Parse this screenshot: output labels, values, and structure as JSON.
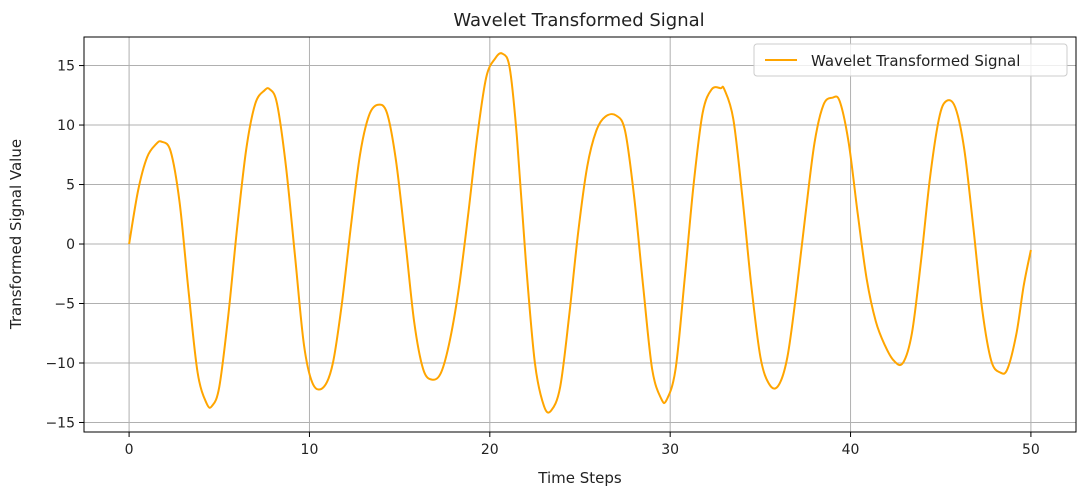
{
  "chart_data": {
    "type": "line",
    "title": "Wavelet Transformed Signal",
    "xlabel": "Time Steps",
    "ylabel": "Transformed Signal Value",
    "xlim": [
      -2.5,
      52.5
    ],
    "ylim": [
      -15.8,
      17.4
    ],
    "xticks": [
      0,
      10,
      20,
      30,
      40,
      50
    ],
    "xtick_labels": [
      "0",
      "10",
      "20",
      "30",
      "40",
      "50"
    ],
    "yticks": [
      -15,
      -10,
      -5,
      0,
      5,
      10,
      15
    ],
    "ytick_labels": [
      "−15",
      "−10",
      "−5",
      "0",
      "5",
      "10",
      "15"
    ],
    "grid": true,
    "legend_position": "top-right",
    "series": [
      {
        "name": "Wavelet Transformed Signal",
        "color": "#FFA500",
        "x": [
          0,
          0.5,
          1.0,
          1.5,
          1.8,
          2.3,
          2.8,
          3.3,
          3.8,
          4.3,
          4.6,
          5.0,
          5.5,
          6.0,
          6.5,
          7.0,
          7.5,
          7.8,
          8.2,
          8.7,
          9.2,
          9.7,
          10.2,
          10.8,
          11.3,
          11.8,
          12.3,
          12.8,
          13.3,
          13.8,
          14.3,
          14.8,
          15.3,
          15.8,
          16.3,
          16.8,
          17.3,
          17.8,
          18.3,
          18.8,
          19.3,
          19.8,
          20.3,
          20.7,
          21.1,
          21.5,
          22.0,
          22.5,
          23.0,
          23.4,
          23.9,
          24.4,
          24.9,
          25.4,
          25.9,
          26.4,
          27.0,
          27.5,
          28.0,
          28.5,
          29.0,
          29.5,
          29.8,
          30.3,
          30.8,
          31.3,
          31.8,
          32.3,
          32.8,
          33.0,
          33.5,
          34.0,
          34.5,
          35.0,
          35.5,
          36.0,
          36.5,
          37.0,
          37.5,
          38.0,
          38.5,
          39.0,
          39.4,
          39.9,
          40.4,
          40.9,
          41.4,
          41.9,
          42.4,
          42.9,
          43.4,
          43.9,
          44.4,
          44.9,
          45.3,
          45.8,
          46.3,
          46.8,
          47.3,
          47.8,
          48.3,
          48.7,
          49.2,
          49.6,
          50.0
        ],
        "y": [
          0,
          4.5,
          7.3,
          8.4,
          8.6,
          7.8,
          3.5,
          -4.0,
          -10.8,
          -13.4,
          -13.6,
          -12.0,
          -6.0,
          1.5,
          8.0,
          11.8,
          12.9,
          13.0,
          11.8,
          6.5,
          -1.0,
          -8.5,
          -11.8,
          -12.0,
          -10.0,
          -5.0,
          1.5,
          7.5,
          10.8,
          11.7,
          11.0,
          7.0,
          0.5,
          -6.5,
          -10.5,
          -11.4,
          -10.8,
          -8.0,
          -3.5,
          2.5,
          9.0,
          14.0,
          15.6,
          16.0,
          14.8,
          9.0,
          -1.5,
          -10.0,
          -13.6,
          -14.0,
          -12.0,
          -6.0,
          1.0,
          6.5,
          9.5,
          10.7,
          10.8,
          9.5,
          4.0,
          -3.5,
          -10.5,
          -13.0,
          -13.1,
          -10.5,
          -3.0,
          5.0,
          11.0,
          13.0,
          13.1,
          13.0,
          10.5,
          4.0,
          -3.5,
          -9.5,
          -11.8,
          -11.9,
          -9.5,
          -4.0,
          2.5,
          8.5,
          11.7,
          12.3,
          12.0,
          8.5,
          2.5,
          -3.0,
          -6.5,
          -8.5,
          -9.8,
          -10.0,
          -7.5,
          -1.5,
          5.5,
          10.5,
          12.0,
          11.5,
          8.0,
          1.5,
          -5.5,
          -9.8,
          -10.8,
          -10.5,
          -7.5,
          -3.5,
          -0.5
        ]
      }
    ]
  }
}
